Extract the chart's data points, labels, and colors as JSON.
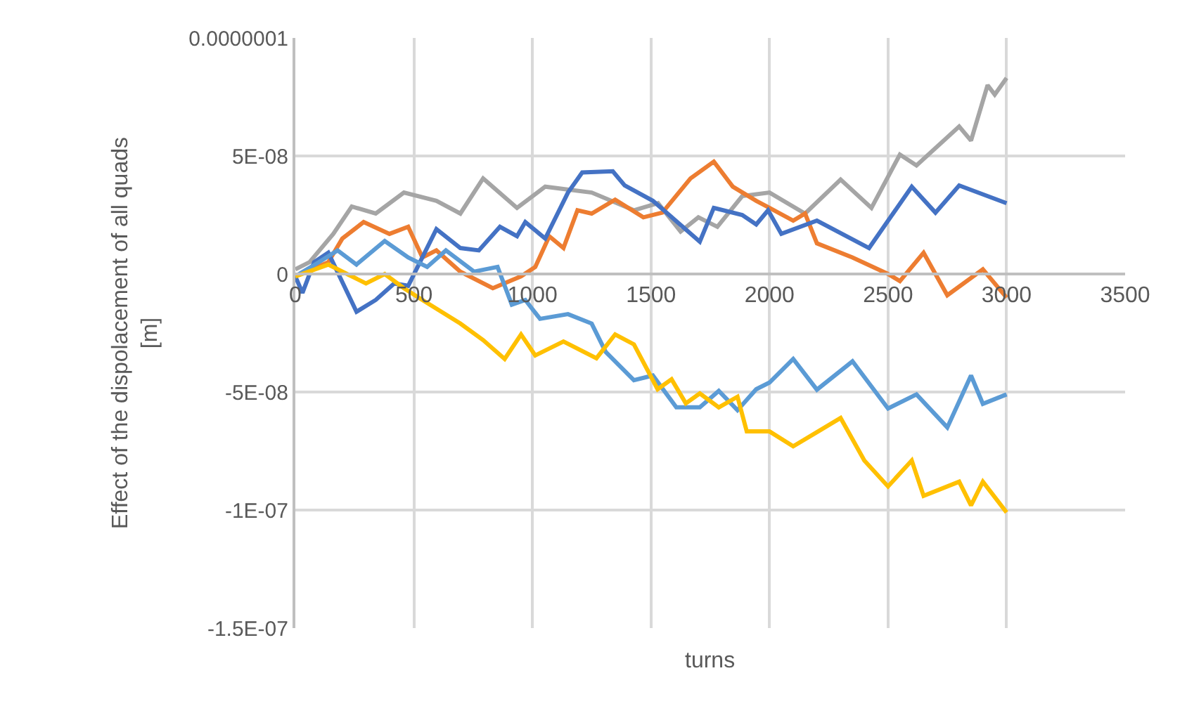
{
  "chart_data": {
    "type": "line",
    "xlabel": "turns",
    "ylabel": "Effect of the dispolacement of all quads\n[m]",
    "xlim": [
      0,
      3500
    ],
    "xticks": [
      0,
      500,
      1000,
      1500,
      2000,
      2500,
      3000,
      3500
    ],
    "ylim": [
      -1.5e-07,
      1e-07
    ],
    "yticks": [
      {
        "value": -1.5e-07,
        "label": "-1.5E-07"
      },
      {
        "value": -1e-07,
        "label": "-1E-07"
      },
      {
        "value": -5e-08,
        "label": "-5E-08"
      },
      0,
      {
        "value": 5e-08,
        "label": "5E-08"
      },
      {
        "value": 1e-07,
        "label": "0.0000001"
      }
    ],
    "grid": true,
    "marker": "none",
    "line_style": "solid",
    "series": [
      {
        "color": "#a5a5a5",
        "x": [
          0,
          60,
          160,
          238,
          339,
          458,
          595,
          696,
          792,
          935,
          1054,
          1250,
          1428,
          1530,
          1625,
          1700,
          1780,
          1885,
          2000,
          2150,
          2300,
          2430,
          2550,
          2620,
          2800,
          2850,
          2920,
          2950,
          3000
        ],
        "values": [
          2e-09,
          5e-09,
          1.7e-08,
          2.86e-08,
          2.56e-08,
          3.45e-08,
          3.1e-08,
          2.56e-08,
          4.05e-08,
          2.8e-08,
          3.7e-08,
          3.45e-08,
          2.7e-08,
          3e-08,
          1.8e-08,
          2.4e-08,
          2e-08,
          3.3e-08,
          3.45e-08,
          2.56e-08,
          4e-08,
          2.8e-08,
          5.06e-08,
          4.6e-08,
          6.25e-08,
          5.65e-08,
          8e-08,
          7.6e-08,
          8.3e-08
        ]
      },
      {
        "color": "#ed7d31",
        "x": [
          0,
          139,
          198,
          288,
          397,
          476,
          536,
          595,
          696,
          833,
          952,
          1012,
          1071,
          1131,
          1190,
          1250,
          1349,
          1468,
          1548,
          1667,
          1765,
          1845,
          1944,
          2000,
          2100,
          2150,
          2200,
          2350,
          2500,
          2550,
          2650,
          2750,
          2900,
          3000
        ],
        "values": [
          -1e-09,
          5e-09,
          1.5e-08,
          2.2e-08,
          1.7e-08,
          2e-08,
          7e-09,
          1e-08,
          1e-09,
          -6e-09,
          -1e-09,
          3e-09,
          1.6e-08,
          1.1e-08,
          2.7e-08,
          2.56e-08,
          3.15e-08,
          2.4e-08,
          2.6e-08,
          4.05e-08,
          4.76e-08,
          3.7e-08,
          3.1e-08,
          2.8e-08,
          2.26e-08,
          2.56e-08,
          1.3e-08,
          7e-09,
          0,
          -3e-09,
          9e-09,
          -9e-09,
          2e-09,
          -1e-08
        ]
      },
      {
        "color": "#4472c4",
        "x": [
          0,
          30,
          79,
          139,
          258,
          339,
          417,
          476,
          595,
          696,
          774,
          863,
          935,
          970,
          1054,
          1150,
          1210,
          1339,
          1389,
          1508,
          1706,
          1765,
          1885,
          1944,
          1994,
          2050,
          2200,
          2420,
          2600,
          2700,
          2800,
          3000
        ],
        "values": [
          -1e-09,
          -8e-09,
          5e-09,
          9e-09,
          -1.6e-08,
          -1.1e-08,
          -4e-09,
          -5e-09,
          1.9e-08,
          1.1e-08,
          1e-08,
          2e-08,
          1.6e-08,
          2.2e-08,
          1.5e-08,
          3.45e-08,
          4.3e-08,
          4.35e-08,
          3.75e-08,
          3.1e-08,
          1.37e-08,
          2.8e-08,
          2.5e-08,
          2.1e-08,
          2.7e-08,
          1.7e-08,
          2.26e-08,
          1.1e-08,
          3.7e-08,
          2.6e-08,
          3.75e-08,
          3e-08
        ]
      },
      {
        "color": "#5b9bd5",
        "x": [
          0,
          99,
          178,
          258,
          377,
          476,
          556,
          635,
          754,
          853,
          913,
          970,
          1032,
          1150,
          1250,
          1309,
          1428,
          1508,
          1607,
          1706,
          1786,
          1865,
          1944,
          2000,
          2100,
          2200,
          2350,
          2500,
          2620,
          2750,
          2850,
          2900,
          3000
        ],
        "values": [
          -1e-09,
          5e-09,
          1e-08,
          4e-09,
          1.4e-08,
          7e-09,
          3e-09,
          1e-08,
          1e-09,
          3e-09,
          -1.3e-08,
          -1.1e-08,
          -1.9e-08,
          -1.7e-08,
          -2.1e-08,
          -3.3e-08,
          -4.5e-08,
          -4.3e-08,
          -5.65e-08,
          -5.65e-08,
          -4.95e-08,
          -5.77e-08,
          -4.88e-08,
          -4.6e-08,
          -3.6e-08,
          -4.9e-08,
          -3.7e-08,
          -5.7e-08,
          -5.1e-08,
          -6.5e-08,
          -4.3e-08,
          -5.5e-08,
          -5.1e-08
        ]
      },
      {
        "color": "#ffc000",
        "x": [
          0,
          139,
          218,
          298,
          377,
          458,
          536,
          696,
          792,
          883,
          952,
          1012,
          1131,
          1270,
          1349,
          1428,
          1528,
          1587,
          1647,
          1706,
          1786,
          1865,
          1904,
          2000,
          2100,
          2200,
          2300,
          2400,
          2500,
          2600,
          2650,
          2800,
          2850,
          2900,
          3000
        ],
        "values": [
          -1e-09,
          4e-09,
          0,
          -4e-09,
          0,
          -6e-09,
          -1.1e-08,
          -2.1e-08,
          -2.8e-08,
          -3.6e-08,
          -2.56e-08,
          -3.45e-08,
          -2.86e-08,
          -3.57e-08,
          -2.56e-08,
          -2.98e-08,
          -4.88e-08,
          -4.46e-08,
          -5.48e-08,
          -5.06e-08,
          -5.65e-08,
          -5.2e-08,
          -6.67e-08,
          -6.67e-08,
          -7.3e-08,
          -6.7e-08,
          -6.1e-08,
          -7.9e-08,
          -9e-08,
          -7.9e-08,
          -9.4e-08,
          -8.8e-08,
          -9.8e-08,
          -8.8e-08,
          -1.01e-07
        ]
      }
    ]
  }
}
